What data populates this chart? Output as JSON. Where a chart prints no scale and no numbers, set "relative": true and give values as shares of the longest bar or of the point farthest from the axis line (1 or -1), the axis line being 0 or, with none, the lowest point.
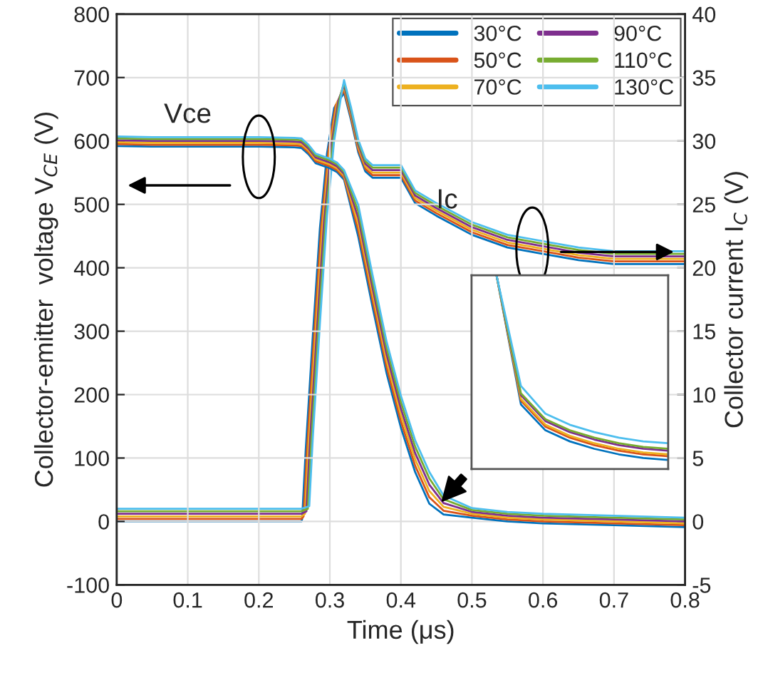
{
  "chart_data": [
    {
      "type": "line",
      "xlabel": "Time (μs)",
      "ylabel": "Collector-emitter  voltage V$_{CE}$ (V)",
      "y2label": "Collector current I$_{C}$ (V)",
      "x": [
        0,
        0.05,
        0.1,
        0.15,
        0.2,
        0.25,
        0.26,
        0.27,
        0.28,
        0.3,
        0.31,
        0.32,
        0.34,
        0.36,
        0.38,
        0.4,
        0.42,
        0.44,
        0.46,
        0.5,
        0.55,
        0.6,
        0.7,
        0.8
      ],
      "xlim": [
        0,
        0.8
      ],
      "xticks": [
        0,
        0.1,
        0.2,
        0.3,
        0.4,
        0.5,
        0.6,
        0.7,
        0.8
      ],
      "ylim": [
        -100,
        800
      ],
      "yticks": [
        -100,
        0,
        100,
        200,
        300,
        400,
        500,
        600,
        700,
        800
      ],
      "y2lim": [
        -5,
        40
      ],
      "y2ticks": [
        -5,
        0,
        5,
        10,
        15,
        20,
        25,
        30,
        35,
        40
      ],
      "grid": true,
      "legend": "top right",
      "line_style": "solid",
      "marker": "none",
      "series": [
        {
          "name": "30°C",
          "color": "#0072bd",
          "axis": "y",
          "values": [
            592,
            591,
            591,
            591,
            591,
            590,
            589,
            579,
            565,
            557,
            551,
            539,
            449,
            339,
            233,
            148,
            78,
            28,
            11,
            6,
            0,
            -3,
            -6,
            -9
          ]
        },
        {
          "name": "50°C",
          "color": "#d95319",
          "axis": "y",
          "values": [
            595,
            594,
            594,
            594,
            594,
            593,
            592,
            582,
            568,
            560,
            554,
            542,
            459,
            349,
            243,
            158,
            88,
            38,
            17,
            9,
            3,
            0,
            -3,
            -6
          ]
        },
        {
          "name": "70°C",
          "color": "#edb120",
          "axis": "y",
          "values": [
            598,
            597,
            597,
            597,
            597,
            596,
            595,
            585,
            571,
            563,
            557,
            545,
            469,
            359,
            253,
            168,
            98,
            48,
            23,
            12,
            6,
            3,
            0,
            -3
          ]
        },
        {
          "name": "90°C",
          "color": "#7e2f8e",
          "axis": "y",
          "values": [
            601,
            600,
            600,
            600,
            600,
            599,
            598,
            588,
            574,
            566,
            560,
            548,
            479,
            369,
            263,
            178,
            108,
            58,
            29,
            15,
            9,
            6,
            3,
            0
          ]
        },
        {
          "name": "110°C",
          "color": "#77ac30",
          "axis": "y",
          "values": [
            604,
            603,
            603,
            603,
            603,
            602,
            601,
            591,
            577,
            569,
            563,
            551,
            489,
            379,
            273,
            188,
            118,
            68,
            35,
            18,
            12,
            9,
            6,
            3
          ]
        },
        {
          "name": "130°C",
          "color": "#4dbeee",
          "axis": "y",
          "values": [
            607,
            606,
            606,
            606,
            606,
            605,
            604,
            594,
            580,
            572,
            566,
            554,
            499,
            389,
            283,
            198,
            128,
            78,
            41,
            21,
            15,
            12,
            9,
            6
          ]
        },
        {
          "color": "#0072bd",
          "axis": "y2",
          "x": [
            0,
            0.1,
            0.2,
            0.26,
            0.261,
            0.266,
            0.276,
            0.286,
            0.296,
            0.306,
            0.32,
            0.33,
            0.34,
            0.35,
            0.36,
            0.38,
            0.4,
            0.41,
            0.42,
            0.45,
            0.5,
            0.55,
            0.6,
            0.65,
            0.7,
            0.8
          ],
          "values": [
            0,
            0,
            0,
            0,
            0.2,
            5.6,
            14.6,
            23.1,
            29,
            32.6,
            33.8,
            31.6,
            29.1,
            27.6,
            27.1,
            27.1,
            27.1,
            26.1,
            25.1,
            24.1,
            22.6,
            21.6,
            21.1,
            20.6,
            20.3,
            20.3
          ]
        },
        {
          "color": "#d95319",
          "axis": "y2",
          "x": [
            0,
            0.1,
            0.2,
            0.26,
            0.263,
            0.268,
            0.278,
            0.288,
            0.298,
            0.308,
            0.32,
            0.33,
            0.34,
            0.35,
            0.36,
            0.38,
            0.4,
            0.41,
            0.42,
            0.45,
            0.5,
            0.55,
            0.6,
            0.65,
            0.7,
            0.8
          ],
          "values": [
            0.2,
            0.2,
            0.2,
            0.2,
            0.4,
            5.8,
            14.8,
            23.3,
            29.2,
            32.8,
            34,
            31.8,
            29.3,
            27.8,
            27.3,
            27.3,
            27.3,
            26.3,
            25.3,
            24.3,
            22.8,
            21.8,
            21.3,
            20.8,
            20.5,
            20.5
          ]
        },
        {
          "color": "#edb120",
          "axis": "y2",
          "x": [
            0,
            0.1,
            0.2,
            0.26,
            0.265,
            0.27,
            0.28,
            0.29,
            0.3,
            0.31,
            0.32,
            0.33,
            0.34,
            0.35,
            0.36,
            0.38,
            0.4,
            0.41,
            0.42,
            0.45,
            0.5,
            0.55,
            0.6,
            0.65,
            0.7,
            0.8
          ],
          "values": [
            0.4,
            0.4,
            0.4,
            0.4,
            0.6,
            6,
            15,
            23.5,
            29.4,
            33,
            34.2,
            32,
            29.5,
            28,
            27.5,
            27.5,
            27.5,
            26.5,
            25.5,
            24.5,
            23,
            22,
            21.5,
            21,
            20.7,
            20.7
          ]
        },
        {
          "color": "#7e2f8e",
          "axis": "y2",
          "x": [
            0,
            0.1,
            0.2,
            0.26,
            0.267,
            0.272,
            0.282,
            0.292,
            0.302,
            0.312,
            0.32,
            0.33,
            0.34,
            0.35,
            0.36,
            0.38,
            0.4,
            0.41,
            0.42,
            0.45,
            0.5,
            0.55,
            0.6,
            0.65,
            0.7,
            0.8
          ],
          "values": [
            0.6,
            0.6,
            0.6,
            0.6,
            0.8,
            6.2,
            15.2,
            23.7,
            29.6,
            33.2,
            34.4,
            32.2,
            29.7,
            28.2,
            27.7,
            27.7,
            27.7,
            26.7,
            25.7,
            24.7,
            23.2,
            22.2,
            21.7,
            21.2,
            20.9,
            20.9
          ]
        },
        {
          "color": "#77ac30",
          "axis": "y2",
          "x": [
            0,
            0.1,
            0.2,
            0.26,
            0.269,
            0.274,
            0.284,
            0.294,
            0.304,
            0.314,
            0.32,
            0.33,
            0.34,
            0.35,
            0.36,
            0.38,
            0.4,
            0.41,
            0.42,
            0.45,
            0.5,
            0.55,
            0.6,
            0.65,
            0.7,
            0.8
          ],
          "values": [
            0.8,
            0.8,
            0.8,
            0.8,
            1,
            6.4,
            15.4,
            23.9,
            29.8,
            33.4,
            34.6,
            32.4,
            29.9,
            28.4,
            27.9,
            27.9,
            27.9,
            26.9,
            25.9,
            24.9,
            23.4,
            22.4,
            21.9,
            21.4,
            21.1,
            21.1
          ]
        },
        {
          "color": "#4dbeee",
          "axis": "y2",
          "x": [
            0,
            0.1,
            0.2,
            0.26,
            0.271,
            0.276,
            0.286,
            0.296,
            0.306,
            0.316,
            0.32,
            0.33,
            0.34,
            0.35,
            0.36,
            0.38,
            0.4,
            0.41,
            0.42,
            0.45,
            0.5,
            0.55,
            0.6,
            0.65,
            0.7,
            0.8
          ],
          "values": [
            1,
            1,
            1,
            1,
            1.2,
            6.6,
            15.6,
            24.1,
            30,
            33.6,
            34.8,
            32.6,
            30.1,
            28.6,
            28.1,
            28.1,
            28.1,
            27.1,
            26.1,
            25.1,
            23.6,
            22.6,
            22.1,
            21.6,
            21.3,
            21.3
          ]
        }
      ],
      "annotations": [
        "Vce",
        "Ic"
      ]
    },
    {
      "type": "line",
      "relative": true,
      "grid": false,
      "line_style": "solid",
      "marker": "none",
      "categories": [
        null,
        null,
        null,
        null,
        null,
        null,
        null,
        null,
        null
      ],
      "series": [
        {
          "color": "#0072bd",
          "values": [
            null,
            1.0,
            0.3,
            0.16,
            0.1,
            0.06,
            0.03,
            0.01,
            0.0
          ]
        },
        {
          "color": "#d95319",
          "values": [
            null,
            1.0,
            0.32,
            0.18,
            0.12,
            0.08,
            0.05,
            0.03,
            0.02
          ]
        },
        {
          "color": "#edb120",
          "values": [
            null,
            1.0,
            0.33,
            0.19,
            0.13,
            0.09,
            0.06,
            0.04,
            0.03
          ]
        },
        {
          "color": "#7e2f8e",
          "values": [
            null,
            1.0,
            0.35,
            0.21,
            0.15,
            0.11,
            0.08,
            0.06,
            0.05
          ]
        },
        {
          "color": "#77ac30",
          "values": [
            null,
            1.0,
            0.36,
            0.22,
            0.16,
            0.12,
            0.09,
            0.07,
            0.06
          ]
        },
        {
          "color": "#4dbeee",
          "values": [
            null,
            1.0,
            0.4,
            0.25,
            0.19,
            0.15,
            0.12,
            0.1,
            0.09
          ]
        }
      ]
    }
  ]
}
